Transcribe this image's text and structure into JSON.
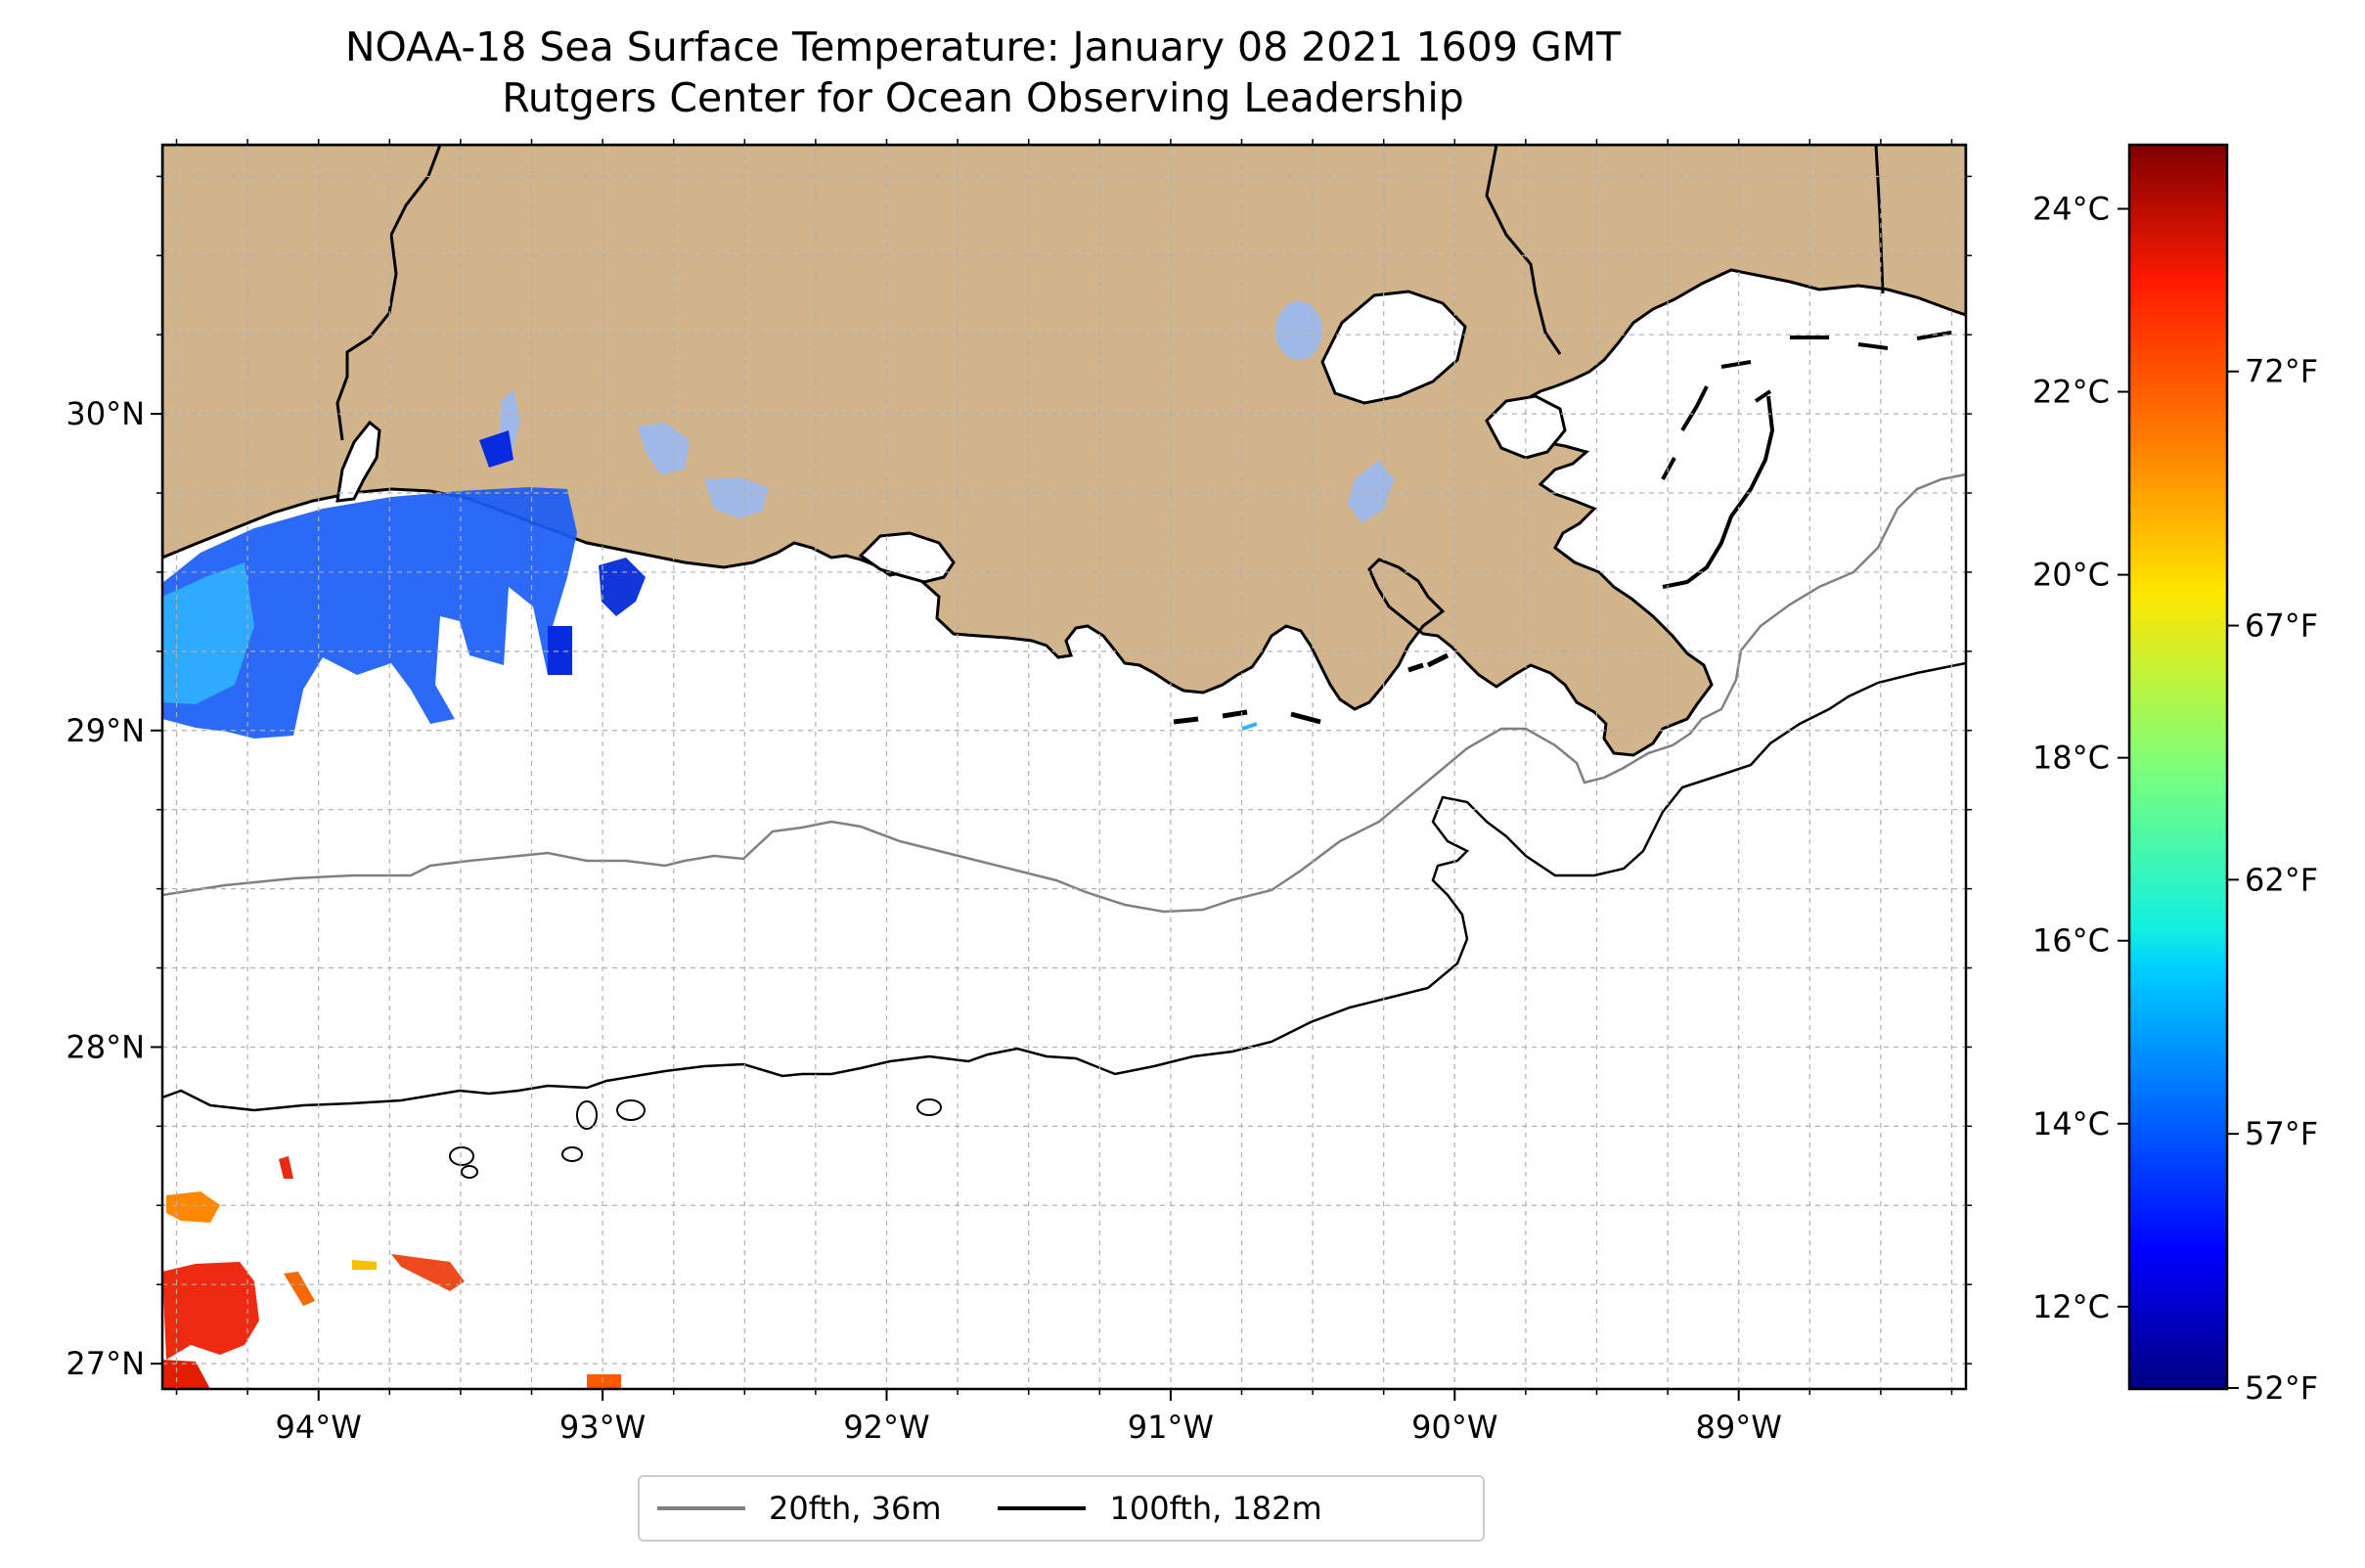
{
  "title": {
    "line1": "NOAA-18 Sea Surface Temperature: January 08 2021 1609 GMT",
    "line2": "Rutgers Center for Ocean Observing Leadership"
  },
  "map": {
    "lon_range": [
      -94.55,
      -88.2
    ],
    "lat_range": [
      26.92,
      30.85
    ],
    "lon_ticks": [
      {
        "value": -94,
        "label": "94°W"
      },
      {
        "value": -93,
        "label": "93°W"
      },
      {
        "value": -92,
        "label": "92°W"
      },
      {
        "value": -91,
        "label": "91°W"
      },
      {
        "value": -90,
        "label": "90°W"
      },
      {
        "value": -89,
        "label": "89°W"
      }
    ],
    "lat_ticks": [
      {
        "value": 27,
        "label": "27°N"
      },
      {
        "value": 28,
        "label": "28°N"
      },
      {
        "value": 29,
        "label": "29°N"
      },
      {
        "value": 30,
        "label": "30°N"
      }
    ],
    "grid": "dashed",
    "colors": {
      "land": "#d2b48c",
      "lakes": "#9fb8e6",
      "isobath_20fth": "#808080",
      "isobath_100fth": "#000000"
    }
  },
  "colorbar": {
    "colormap": "jet",
    "celsius_range": [
      11.1,
      24.7
    ],
    "celsius_ticks": [
      {
        "value": 12,
        "label": "12°C"
      },
      {
        "value": 14,
        "label": "14°C"
      },
      {
        "value": 16,
        "label": "16°C"
      },
      {
        "value": 18,
        "label": "18°C"
      },
      {
        "value": 20,
        "label": "20°C"
      },
      {
        "value": 22,
        "label": "22°C"
      },
      {
        "value": 24,
        "label": "24°C"
      }
    ],
    "fahrenheit_ticks": [
      {
        "value": 52,
        "label": "52°F"
      },
      {
        "value": 57,
        "label": "57°F"
      },
      {
        "value": 62,
        "label": "62°F"
      },
      {
        "value": 67,
        "label": "67°F"
      },
      {
        "value": 72,
        "label": "72°F"
      }
    ]
  },
  "legend": {
    "placement": "bottom-center",
    "items": [
      {
        "label": "20fth, 36m",
        "color": "#808080"
      },
      {
        "label": "100fth, 182m",
        "color": "#000000"
      }
    ]
  }
}
